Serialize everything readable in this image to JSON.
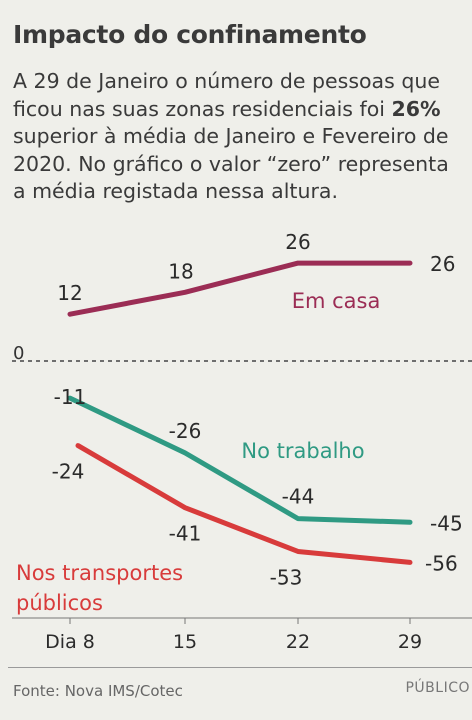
{
  "header": {
    "title": "Impacto do confinamento",
    "intro_before": "A 29 de Janeiro o número de pessoas que ficou nas suas zonas residenciais foi ",
    "intro_highlight": "26%",
    "intro_after": " superior à média de Janeiro e Fevereiro de 2020. No gráfico o valor “zero” representa a média registada nessa altura."
  },
  "chart_data": {
    "type": "line",
    "categories": [
      "Dia 8",
      "15",
      "22",
      "29"
    ],
    "zero_label": "0",
    "series": [
      {
        "name": "Em casa",
        "color": "#9b2d55",
        "values": [
          12,
          18,
          26,
          26
        ]
      },
      {
        "name": "No trabalho",
        "color": "#2f9a83",
        "values": [
          -11,
          -26,
          -44,
          -45
        ]
      },
      {
        "name": "Nos transportes públicos",
        "color": "#d83b3b",
        "values": [
          -24,
          -41,
          -53,
          -56
        ]
      }
    ],
    "series_label_lines": [
      [
        "Em casa"
      ],
      [
        "No trabalho"
      ],
      [
        "Nos transportes",
        "públicos"
      ]
    ]
  },
  "footer": {
    "source": "Fonte: Nova IMS/Cotec",
    "brand": "PÚBLICO"
  }
}
